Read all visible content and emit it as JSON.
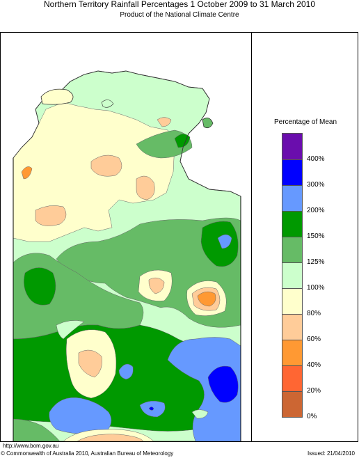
{
  "header": {
    "title": "Northern Territory Rainfall Percentages 1 October 2009 to 31 March 2010",
    "subtitle": "Product of the National Climate Centre"
  },
  "legend": {
    "title": "Percentage of Mean",
    "bins": [
      {
        "label": "400%",
        "color": "#6a0dad"
      },
      {
        "label": "300%",
        "color": "#0000ff"
      },
      {
        "label": "200%",
        "color": "#6699ff"
      },
      {
        "label": "150%",
        "color": "#009900"
      },
      {
        "label": "125%",
        "color": "#66bb66"
      },
      {
        "label": "100%",
        "color": "#ccffcc"
      },
      {
        "label": "80%",
        "color": "#ffffcc"
      },
      {
        "label": "60%",
        "color": "#ffcc99"
      },
      {
        "label": "40%",
        "color": "#ff9933"
      },
      {
        "label": "20%",
        "color": "#ff6633"
      },
      {
        "label": "0%",
        "color": "#cc6633"
      }
    ]
  },
  "footer": {
    "url": "http://www.bom.gov.au",
    "copyright": "© Commonwealth of Australia 2010, Australian Bureau of Meteorology",
    "issued": "Issued: 21/04/2010"
  }
}
